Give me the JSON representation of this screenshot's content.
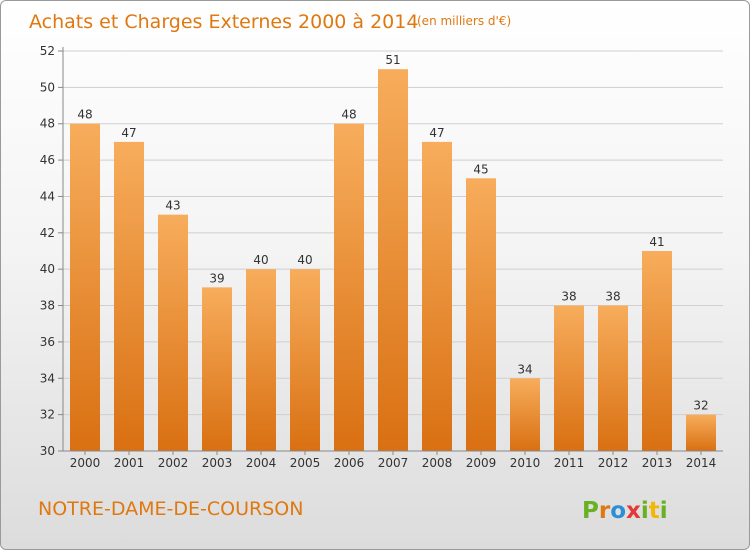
{
  "chart_data": {
    "type": "bar",
    "title": "Achats et Charges Externes 2000 à 2014",
    "unit_label": "(en milliers d'€)",
    "categories": [
      "2000",
      "2001",
      "2002",
      "2003",
      "2004",
      "2005",
      "2006",
      "2007",
      "2008",
      "2009",
      "2010",
      "2011",
      "2012",
      "2013",
      "2014"
    ],
    "values": [
      48,
      47,
      43,
      39,
      40,
      40,
      48,
      51,
      47,
      45,
      34,
      38,
      38,
      41,
      32
    ],
    "ylim": [
      30,
      52
    ],
    "yticks": [
      30,
      32,
      34,
      36,
      38,
      40,
      42,
      44,
      46,
      48,
      50,
      52
    ],
    "grid": true,
    "bar_color": "#f0922f",
    "bar_color_light": "#f7ad5c",
    "bar_color_dark": "#d97012"
  },
  "footer": {
    "commune": "NOTRE-DAME-DE-COURSON",
    "logo_letters": [
      "P",
      "r",
      "o",
      "x",
      "i",
      "t",
      "i"
    ],
    "logo_colors": [
      "#6ab023",
      "#e07810",
      "#2a8fd6",
      "#e53935",
      "#6ab023",
      "#f2b705",
      "#6ab023"
    ]
  }
}
